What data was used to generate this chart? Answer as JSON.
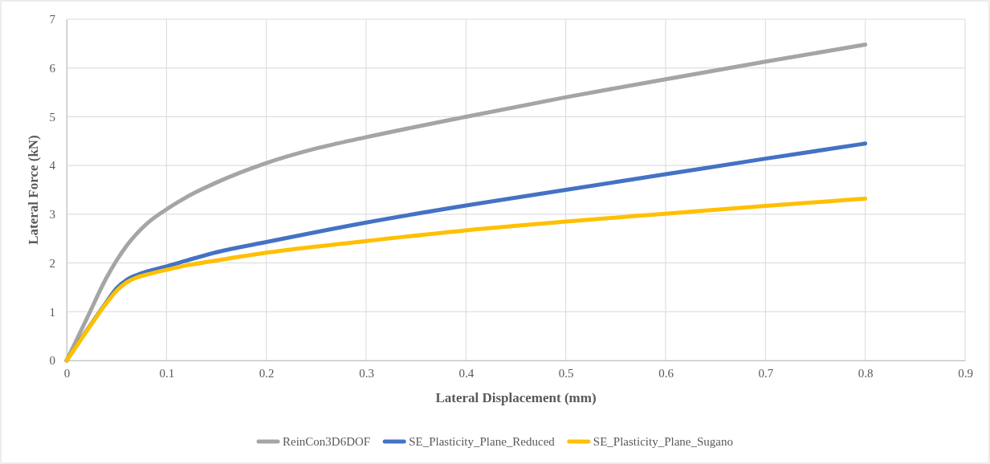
{
  "chart_data": {
    "type": "line",
    "xlabel": "Lateral Displacement (mm)",
    "ylabel": "Lateral Force (kN)",
    "xlim": [
      0,
      0.9
    ],
    "xticks": [
      0,
      0.1,
      0.2,
      0.3,
      0.4,
      0.5,
      0.6,
      0.7,
      0.8,
      0.9
    ],
    "ylim": [
      0,
      7
    ],
    "yticks": [
      0,
      1,
      2,
      3,
      4,
      5,
      6,
      7
    ],
    "grid": true,
    "legend": "bottom",
    "marker": "none",
    "line_style": "solid",
    "series": [
      {
        "name": "ReinCon3D6DOF",
        "color": "#a5a5a5",
        "x": [
          0,
          0.02,
          0.04,
          0.05,
          0.06,
          0.08,
          0.1,
          0.12,
          0.15,
          0.2,
          0.25,
          0.3,
          0.4,
          0.5,
          0.6,
          0.7,
          0.8
        ],
        "values": [
          0,
          0.85,
          1.7,
          2.05,
          2.35,
          2.8,
          3.1,
          3.35,
          3.65,
          4.05,
          4.35,
          4.58,
          5.0,
          5.4,
          5.77,
          6.13,
          6.48
        ]
      },
      {
        "name": "SE_Plasticity_Plane_Reduced",
        "color": "#4472c4",
        "x": [
          0,
          0.02,
          0.04,
          0.05,
          0.06,
          0.07,
          0.08,
          0.1,
          0.12,
          0.15,
          0.2,
          0.3,
          0.4,
          0.5,
          0.6,
          0.7,
          0.8
        ],
        "values": [
          0,
          null,
          1.2,
          1.48,
          1.65,
          1.75,
          1.82,
          1.93,
          2.05,
          2.22,
          2.43,
          2.83,
          3.18,
          3.5,
          3.82,
          4.14,
          4.45
        ]
      },
      {
        "name": "SE_Plasticity_Plane_Sugano",
        "color": "#ffc000",
        "x": [
          0,
          0.02,
          0.04,
          0.05,
          0.06,
          0.07,
          0.08,
          0.1,
          0.12,
          0.15,
          0.2,
          0.3,
          0.4,
          0.5,
          0.6,
          0.7,
          0.8
        ],
        "values": [
          0,
          0.6,
          1.18,
          1.43,
          1.6,
          1.7,
          1.76,
          1.86,
          1.95,
          2.05,
          2.21,
          2.45,
          2.67,
          2.85,
          3.01,
          3.17,
          3.32
        ]
      }
    ]
  }
}
